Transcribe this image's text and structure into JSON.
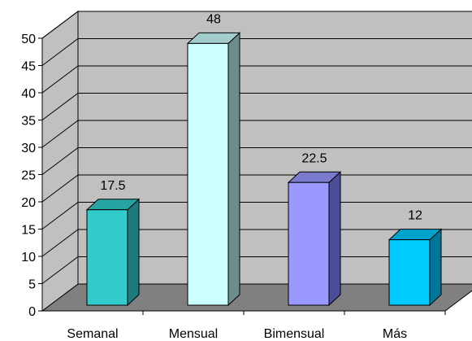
{
  "chart_data": {
    "type": "bar",
    "style": "3d-column",
    "categories": [
      "Semanal",
      "Mensual",
      "Bimensual",
      "Más"
    ],
    "values": [
      17.5,
      48,
      22.5,
      12
    ],
    "value_labels": [
      "17.5",
      "48",
      "22.5",
      "12"
    ],
    "title": "",
    "xlabel": "",
    "ylabel": "",
    "ylim": [
      0,
      50
    ],
    "yticks": [
      "0",
      "5",
      "10",
      "15",
      "20",
      "25",
      "30",
      "35",
      "40",
      "45",
      "50"
    ],
    "grid": true,
    "legend": "none",
    "colors": {
      "wall": "#c0c0c0",
      "floor": "#808080",
      "bars": [
        "#33cccc",
        "#ccffff",
        "#9999ff",
        "#00ccff"
      ],
      "bar_sides": [
        "#1f7a7a",
        "#6e8c8c",
        "#4d4d99",
        "#007799"
      ],
      "bar_tops": [
        "#26a3a3",
        "#a3cccc",
        "#7a7acc",
        "#00a3cc"
      ]
    }
  }
}
